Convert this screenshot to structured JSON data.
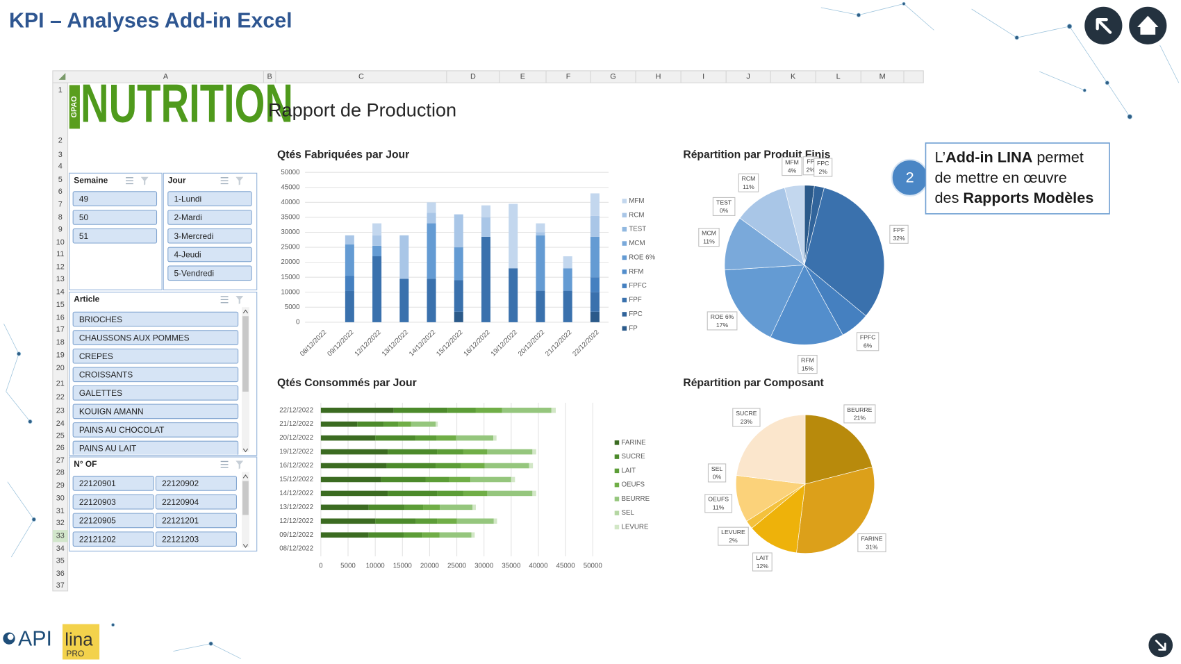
{
  "header": {
    "title": "KPI – Analyses Add-in Excel"
  },
  "sheet": {
    "columns": [
      "A",
      "B",
      "C",
      "D",
      "E",
      "F",
      "G",
      "H",
      "I",
      "J",
      "K",
      "L",
      "M"
    ],
    "rows": [
      1,
      2,
      3,
      4,
      5,
      6,
      7,
      8,
      9,
      10,
      11,
      12,
      13,
      14,
      15,
      16,
      17,
      18,
      19,
      20,
      21,
      22,
      23,
      24,
      25,
      26,
      27,
      28,
      29,
      30,
      31,
      32,
      33,
      34,
      35,
      36,
      37
    ]
  },
  "report": {
    "logo": "NUTRITION",
    "logo_tag": "GPAO",
    "title": "Rapport de Production"
  },
  "slicers": [
    {
      "title": "Semaine",
      "items": [
        "49",
        "50",
        "51"
      ]
    },
    {
      "title": "Jour",
      "items": [
        "1-Lundi",
        "2-Mardi",
        "3-Mercredi",
        "4-Jeudi",
        "5-Vendredi"
      ]
    },
    {
      "title": "Article",
      "items": [
        "BRIOCHES",
        "CHAUSSONS AUX POMMES",
        "CREPES",
        "CROISSANTS",
        "GALETTES",
        "KOUIGN AMANN",
        "PAINS AU CHOCOLAT",
        "PAINS AU LAIT"
      ]
    },
    {
      "title": "N° OF",
      "items": [
        "22120901",
        "22120902",
        "22120903",
        "22120904",
        "22120905",
        "22121201",
        "22121202",
        "22121203"
      ]
    }
  ],
  "chart_data": [
    {
      "type": "bar",
      "orientation": "vertical",
      "stacked": true,
      "title": "Qtés Fabriquées par Jour",
      "categories": [
        "08/12/2022",
        "09/12/2022",
        "12/12/2022",
        "13/12/2022",
        "14/12/2022",
        "15/12/2022",
        "16/12/2022",
        "19/12/2022",
        "20/12/2022",
        "21/12/2022",
        "22/12/2022"
      ],
      "series": [
        {
          "name": "FP",
          "color": "#2b5a8a",
          "values": [
            null,
            0,
            0,
            0,
            0,
            3500,
            0,
            0,
            0,
            0,
            3500
          ]
        },
        {
          "name": "FPC",
          "color": "#31649b",
          "values": [
            null,
            0,
            0,
            0,
            0,
            0,
            0,
            0,
            0,
            0,
            0
          ]
        },
        {
          "name": "FPF",
          "color": "#3a71ad",
          "values": [
            null,
            10500,
            22000,
            14500,
            14500,
            10500,
            28500,
            18000,
            10500,
            10500,
            6500
          ]
        },
        {
          "name": "FPFC",
          "color": "#4580c0",
          "values": [
            null,
            5000,
            0,
            0,
            0,
            0,
            0,
            0,
            0,
            0,
            5000
          ]
        },
        {
          "name": "RFM",
          "color": "#538ecc",
          "values": [
            null,
            0,
            0,
            0,
            0,
            0,
            0,
            0,
            0,
            0,
            0
          ]
        },
        {
          "name": "ROE 6%",
          "color": "#649bd3",
          "values": [
            null,
            10500,
            3500,
            0,
            18500,
            11000,
            0,
            0,
            18500,
            7500,
            13500
          ]
        },
        {
          "name": "MCM",
          "color": "#7aa9da",
          "values": [
            null,
            0,
            0,
            0,
            0,
            0,
            0,
            0,
            0,
            0,
            0
          ]
        },
        {
          "name": "TEST",
          "color": "#91b8e0",
          "values": [
            null,
            0,
            0,
            0,
            0,
            0,
            0,
            0,
            0,
            0,
            0
          ]
        },
        {
          "name": "RCM",
          "color": "#a9c6e7",
          "values": [
            null,
            3000,
            3500,
            14500,
            3500,
            11000,
            6500,
            0,
            1000,
            0,
            7000
          ]
        },
        {
          "name": "MFM",
          "color": "#c3d7ee",
          "values": [
            null,
            0,
            4000,
            0,
            3500,
            0,
            4000,
            21500,
            3000,
            4000,
            7500
          ]
        }
      ],
      "ylim": [
        0,
        50000
      ],
      "yticks": [
        0,
        5000,
        10000,
        15000,
        20000,
        25000,
        30000,
        35000,
        40000,
        45000,
        50000
      ],
      "grid": true,
      "legend": "right"
    },
    {
      "type": "bar",
      "orientation": "horizontal",
      "stacked": true,
      "title": "Qtés Consommés par Jour",
      "categories": [
        "22/12/2022",
        "21/12/2022",
        "20/12/2022",
        "19/12/2022",
        "16/12/2022",
        "15/12/2022",
        "14/12/2022",
        "13/12/2022",
        "12/12/2022",
        "09/12/2022",
        "08/12/2022"
      ],
      "series": [
        {
          "name": "FARINE",
          "color": "#3b6b21",
          "values": [
            13400,
            6700,
            10000,
            12300,
            12100,
            11100,
            12300,
            8800,
            10000,
            8800,
            null
          ]
        },
        {
          "name": "SUCRE",
          "color": "#4c8a2b",
          "values": [
            9900,
            4900,
            7400,
            9100,
            9000,
            8200,
            9100,
            6600,
            7500,
            6500,
            null
          ]
        },
        {
          "name": "LAIT",
          "color": "#5c9d37",
          "values": [
            5200,
            2600,
            3900,
            4800,
            4700,
            4300,
            4800,
            3400,
            3900,
            3400,
            null
          ]
        },
        {
          "name": "OEUFS",
          "color": "#70ae47",
          "values": [
            4800,
            2400,
            3600,
            4400,
            4300,
            3900,
            4400,
            3100,
            3600,
            3100,
            null
          ]
        },
        {
          "name": "BEURRE",
          "color": "#95c67d",
          "values": [
            9100,
            4500,
            6800,
            8300,
            8200,
            7500,
            8300,
            6000,
            6800,
            5900,
            null
          ]
        },
        {
          "name": "SEL",
          "color": "#b5d7a3",
          "values": [
            0,
            0,
            0,
            0,
            0,
            0,
            0,
            0,
            0,
            0,
            null
          ]
        },
        {
          "name": "LEVURE",
          "color": "#d2e7c6",
          "values": [
            800,
            400,
            600,
            700,
            700,
            700,
            700,
            600,
            600,
            600,
            null
          ]
        }
      ],
      "xlim": [
        0,
        50000
      ],
      "xticks": [
        0,
        5000,
        10000,
        15000,
        20000,
        25000,
        30000,
        35000,
        40000,
        45000,
        50000
      ],
      "grid": true,
      "legend": "right"
    },
    {
      "type": "pie",
      "title": "Répartition par Produit Finis",
      "categories": [
        "FP",
        "FPC",
        "FPF",
        "FPFC",
        "RFM",
        "ROE 6%",
        "MCM",
        "TEST",
        "RCM",
        "MFM"
      ],
      "values": [
        2,
        2,
        32,
        6,
        15,
        17,
        11,
        0,
        11,
        4
      ],
      "value_labels": [
        "2%",
        "2%",
        "32%",
        "6%",
        "15%",
        "17%",
        "11%",
        "0%",
        "11%",
        "4%"
      ],
      "colors": [
        "#2b5a8a",
        "#31649b",
        "#3a71ad",
        "#4580c0",
        "#538ecc",
        "#649bd3",
        "#7aa9da",
        "#91b8e0",
        "#a9c6e7",
        "#c3d7ee"
      ]
    },
    {
      "type": "pie",
      "title": "Répartition par Composant",
      "categories": [
        "BEURRE",
        "FARINE",
        "LAIT",
        "LEVURE",
        "OEUFS",
        "SEL",
        "SUCRE"
      ],
      "values": [
        21,
        31,
        12,
        2,
        11,
        0,
        23
      ],
      "value_labels": [
        "21%",
        "31%",
        "12%",
        "2%",
        "11%",
        "0%",
        "23%"
      ],
      "colors": [
        "#b88a0c",
        "#dca01a",
        "#eeb20a",
        "#f4c13c",
        "#fbd27a",
        "#fde0a8",
        "#fbe6cc"
      ]
    }
  ],
  "callout": {
    "number": "2",
    "lines": [
      [
        "L’",
        "Add-in LINA",
        " permet"
      ],
      [
        "de mettre en œuvre"
      ],
      [
        "des ",
        "Rapports Modèles"
      ]
    ]
  },
  "footer": {
    "brand": "API",
    "product": "lina",
    "edition": "PRO"
  }
}
